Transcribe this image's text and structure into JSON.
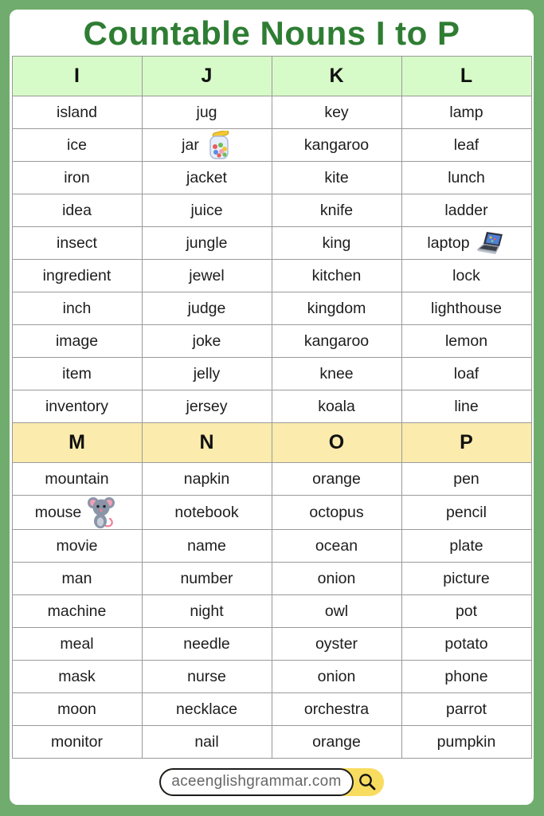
{
  "title": "Countable Nouns I to P",
  "colors": {
    "frame_green": "#6FAC6D",
    "title_green": "#2E7D33",
    "header_green_bg": "#D7FBC8",
    "header_yellow_bg": "#FBEBAD",
    "border_gray": "#9A9A9A",
    "footer_yellow": "#F8DC60"
  },
  "table1": {
    "header_color": "#D7FBC8",
    "headers": [
      "I",
      "J",
      "K",
      "L"
    ],
    "rows": [
      [
        "island",
        "jug",
        "key",
        "lamp"
      ],
      [
        "ice",
        "jar",
        "kangaroo",
        "leaf"
      ],
      [
        "iron",
        "jacket",
        "kite",
        "lunch"
      ],
      [
        "idea",
        "juice",
        "knife",
        "ladder"
      ],
      [
        "insect",
        "jungle",
        "king",
        "laptop"
      ],
      [
        "ingredient",
        "jewel",
        "kitchen",
        "lock"
      ],
      [
        "inch",
        "judge",
        "kingdom",
        "lighthouse"
      ],
      [
        "image",
        "joke",
        "kangaroo",
        "lemon"
      ],
      [
        "item",
        "jelly",
        "knee",
        "loaf"
      ],
      [
        "inventory",
        "jersey",
        "koala",
        "line"
      ]
    ]
  },
  "table2": {
    "header_color": "#FBEBAD",
    "headers": [
      "M",
      "N",
      "O",
      "P"
    ],
    "rows": [
      [
        "mountain",
        "napkin",
        "orange",
        "pen"
      ],
      [
        "mouse",
        "notebook",
        "octopus",
        "pencil"
      ],
      [
        "movie",
        "name",
        "ocean",
        "plate"
      ],
      [
        "man",
        "number",
        "onion",
        "picture"
      ],
      [
        "machine",
        "night",
        "owl",
        "pot"
      ],
      [
        "meal",
        "needle",
        "oyster",
        "potato"
      ],
      [
        "mask",
        "nurse",
        "onion",
        "phone"
      ],
      [
        "moon",
        "necklace",
        "orchestra",
        "parrot"
      ],
      [
        "monitor",
        "nail",
        "orange",
        "pumpkin"
      ]
    ]
  },
  "icons": [
    {
      "section": "table1",
      "row": 1,
      "col": 1,
      "icon": "jar-icon"
    },
    {
      "section": "table1",
      "row": 4,
      "col": 3,
      "icon": "laptop-icon"
    },
    {
      "section": "table2",
      "row": 1,
      "col": 0,
      "icon": "mouse-icon"
    }
  ],
  "footer": {
    "website": "aceenglishgrammar.com",
    "search_icon": "magnifying-glass"
  }
}
